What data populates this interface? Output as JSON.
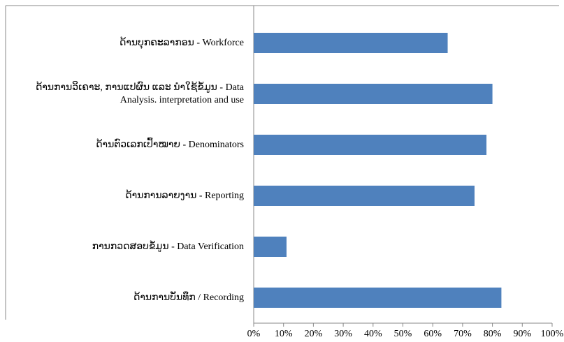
{
  "chart_data": {
    "type": "barh",
    "categories": [
      "ດ້ານບຸກຄະລາກອນ - Workforce",
      "ດ້ານການວິເຄາະ, ການແປຜົນ ແລະ ນຳໃຊ້ຂໍ້ມູນ - Data Analysis. interpretation and use",
      "ດ້ານຕົວເລກເປົ້າໝາຍ - Denominators",
      "ດ້ານການລາຍງານ - Reporting",
      "ການກວດສອບຂໍ້ມູນ - Data Verification",
      "ດ້ານການບັນທຶກ / Recording"
    ],
    "values": [
      65,
      80,
      78,
      74,
      11,
      83
    ],
    "color": "#4f81bd",
    "xlim": [
      0,
      100
    ],
    "xticks": [
      {
        "value": 0,
        "label": "0%"
      },
      {
        "value": 10,
        "label": "10%"
      },
      {
        "value": 20,
        "label": "20%"
      },
      {
        "value": 30,
        "label": "30%"
      },
      {
        "value": 40,
        "label": "40%"
      },
      {
        "value": 50,
        "label": "50%"
      },
      {
        "value": 60,
        "label": "60%"
      },
      {
        "value": 70,
        "label": "70%"
      },
      {
        "value": 80,
        "label": "80%"
      },
      {
        "value": 90,
        "label": "90%"
      },
      {
        "value": 100,
        "label": "100%"
      }
    ]
  }
}
